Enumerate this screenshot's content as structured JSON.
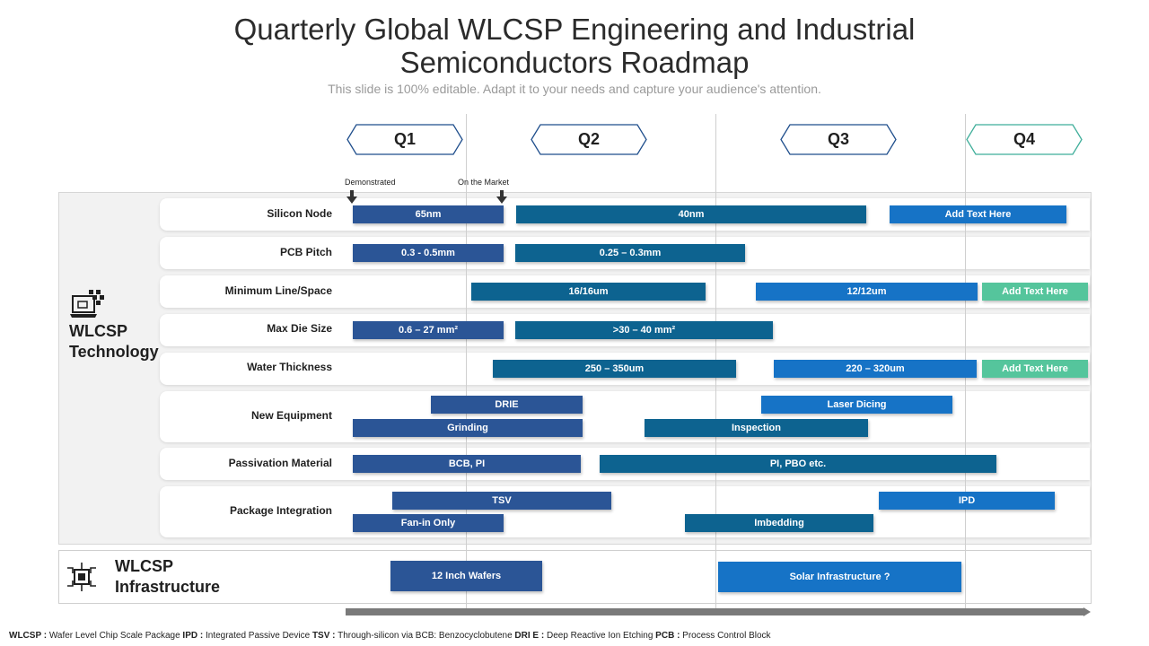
{
  "title_line1": "Quarterly Global WLCSP Engineering and Industrial",
  "title_line2": "Semiconductors Roadmap",
  "subtitle": "This slide is 100% editable. Adapt it to your needs and capture your audience's attention.",
  "quarters": [
    "Q1",
    "Q2",
    "Q3",
    "Q4"
  ],
  "markers": {
    "demonstrated": "Demonstrated",
    "on_market": "On the Market"
  },
  "groups": {
    "technology": {
      "line1": "WLCSP",
      "line2": "Technology",
      "icon": "laptop-chip-icon"
    },
    "infrastructure": {
      "line1": "WLCSP",
      "line2": "Infrastructure",
      "icon": "chip-icon"
    }
  },
  "rows": [
    {
      "label": "Silicon Node",
      "bars": [
        "65nm",
        "40nm",
        "Add Text Here"
      ]
    },
    {
      "label": "PCB Pitch",
      "bars": [
        "0.3 - 0.5mm",
        "0.25 – 0.3mm"
      ]
    },
    {
      "label": "Minimum Line/Space",
      "bars": [
        "16/16um",
        "12/12um",
        "Add Text Here"
      ]
    },
    {
      "label": "Max Die Size",
      "bars": [
        "0.6 – 27 mm²",
        ">30 – 40 mm²"
      ]
    },
    {
      "label": "Water Thickness",
      "bars": [
        "250 – 350um",
        "220 – 320um",
        "Add Text Here"
      ]
    },
    {
      "label": "New Equipment",
      "bars": [
        "DRIE",
        "Grinding",
        "Laser Dicing",
        "Inspection"
      ]
    },
    {
      "label": "Passivation Material",
      "bars": [
        "BCB, PI",
        "PI, PBO etc."
      ]
    },
    {
      "label": "Package Integration",
      "bars": [
        "TSV",
        "Fan-in Only",
        "IPD",
        "Imbedding"
      ]
    }
  ],
  "infrastructure_bars": [
    "12 Inch Wafers",
    "Solar Infrastructure ?"
  ],
  "footnote": {
    "k1": "WLCSP :",
    "v1": " Wafer Level Chip Scale Package ",
    "k2": "IPD :",
    "v2": " Integrated Passive Device ",
    "k3": "TSV :",
    "v3": " Through-silicon via BCB: Benzocyclobutene ",
    "k4": "DRI E :",
    "v4": " Deep Reactive Ion Etching ",
    "k5": "PCB :",
    "v5": " Process Control Block"
  },
  "colors": {
    "navy": "#2b5596",
    "teal": "#0d6390",
    "blue": "#1673c6",
    "green": "#55c59c",
    "hex_blue": "#1f4e8c",
    "hex_teal": "#3fae9a"
  }
}
